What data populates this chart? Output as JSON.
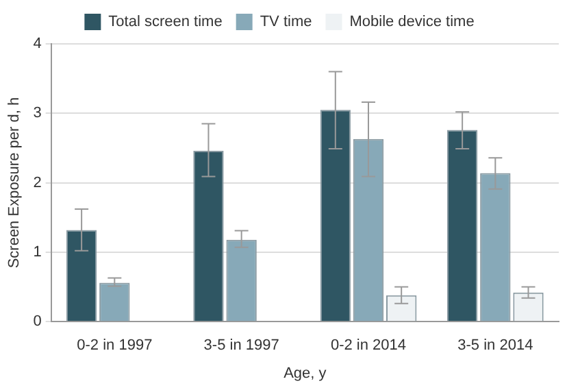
{
  "chart_data": {
    "type": "bar",
    "xlabel": "Age, y",
    "ylabel": "Screen Exposure per d, h",
    "categories": [
      "0-2 in 1997",
      "3-5 in 1997",
      "0-2 in 2014",
      "3-5 in 2014"
    ],
    "series": [
      {
        "name": "Total screen time",
        "color": "#2f5663",
        "values": [
          1.32,
          2.46,
          3.05,
          2.76
        ],
        "errors": [
          [
            1.02,
            1.62
          ],
          [
            2.09,
            2.85
          ],
          [
            2.49,
            3.6
          ],
          [
            2.49,
            3.02
          ]
        ]
      },
      {
        "name": "TV time",
        "color": "#87a9b8",
        "values": [
          0.56,
          1.18,
          2.63,
          2.14
        ],
        "errors": [
          [
            0.51,
            0.63
          ],
          [
            1.07,
            1.31
          ],
          [
            2.09,
            3.16
          ],
          [
            1.91,
            2.36
          ]
        ]
      },
      {
        "name": "Mobile device time",
        "color": "#eef2f4",
        "values": [
          null,
          null,
          0.38,
          0.42
        ],
        "errors": [
          null,
          null,
          [
            0.26,
            0.5
          ],
          [
            0.34,
            0.5
          ]
        ]
      }
    ],
    "ylim": [
      0,
      4
    ],
    "yticks": [
      0,
      1,
      2,
      3,
      4
    ],
    "grid": "y",
    "legend": "top"
  }
}
